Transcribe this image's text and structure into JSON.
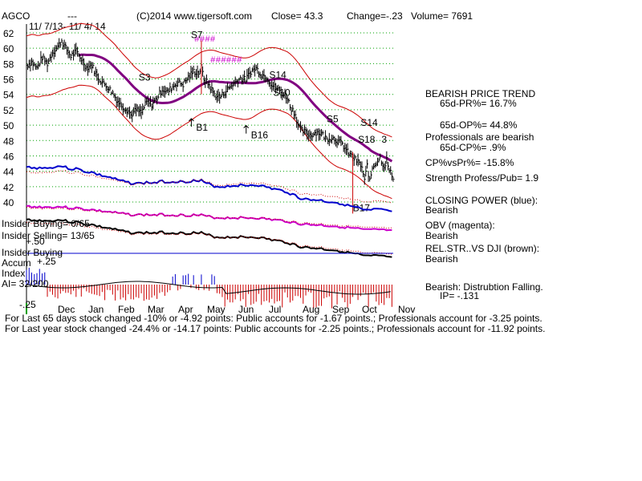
{
  "header": {
    "ticker": "AGCO",
    "dashes": "---",
    "copyright": "(C)2014 www.tigersoft.com",
    "close": "Close=  43.3",
    "change": "Change=-.23",
    "volume": "Volume= 7691",
    "date_range": "11/ 7/13- 11/ 4/ 14"
  },
  "chart_data": {
    "type": "line",
    "y_ticks": [
      "62",
      "60",
      "58",
      "56",
      "54",
      "52",
      "50",
      "48",
      "46",
      "44",
      "42",
      "40"
    ],
    "ylim": [
      40,
      62
    ],
    "x_months": [
      "Dec",
      "Jan",
      "Feb",
      "Mar",
      "Apr",
      "May",
      "Jun",
      "Jul",
      "Aug",
      "Sep",
      "Oct",
      "Nov"
    ],
    "price_path": [
      [
        0,
        57.8
      ],
      [
        4,
        58.2
      ],
      [
        8,
        57.4
      ],
      [
        12,
        58.8
      ],
      [
        16,
        58.0
      ],
      [
        20,
        59.5
      ],
      [
        24,
        60.2
      ],
      [
        27,
        61.0
      ],
      [
        30,
        60.0
      ],
      [
        34,
        59.0
      ],
      [
        38,
        59.6
      ],
      [
        42,
        58.6
      ],
      [
        46,
        57.5
      ],
      [
        50,
        57.8
      ],
      [
        54,
        56.4
      ],
      [
        58,
        55.6
      ],
      [
        62,
        55.0
      ],
      [
        66,
        54.2
      ],
      [
        70,
        53.1
      ],
      [
        74,
        52.4
      ],
      [
        78,
        51.9
      ],
      [
        80,
        51.3
      ],
      [
        84,
        52.0
      ],
      [
        88,
        51.6
      ],
      [
        92,
        53.0
      ],
      [
        96,
        52.7
      ],
      [
        100,
        53.5
      ],
      [
        104,
        54.7
      ],
      [
        108,
        54.3
      ],
      [
        112,
        55.0
      ],
      [
        116,
        55.6
      ],
      [
        120,
        55.3
      ],
      [
        124,
        56.2
      ],
      [
        128,
        57.0
      ],
      [
        132,
        56.8
      ],
      [
        134,
        57.5
      ],
      [
        136,
        56.0
      ],
      [
        140,
        55.2
      ],
      [
        144,
        54.0
      ],
      [
        148,
        53.6
      ],
      [
        152,
        54.3
      ],
      [
        156,
        55.0
      ],
      [
        160,
        55.6
      ],
      [
        164,
        56.1
      ],
      [
        168,
        55.9
      ],
      [
        172,
        57.0
      ],
      [
        176,
        57.4
      ],
      [
        180,
        56.6
      ],
      [
        184,
        56.3
      ],
      [
        188,
        55.2
      ],
      [
        192,
        54.8
      ],
      [
        196,
        54.1
      ],
      [
        200,
        53.6
      ],
      [
        202,
        52.4
      ],
      [
        204,
        52.0
      ],
      [
        206,
        51.4
      ],
      [
        208,
        50.1
      ],
      [
        210,
        49.4
      ],
      [
        214,
        49.0
      ],
      [
        218,
        48.7
      ],
      [
        222,
        49.1
      ],
      [
        226,
        48.9
      ],
      [
        230,
        48.2
      ],
      [
        234,
        48.4
      ],
      [
        238,
        48.0
      ],
      [
        242,
        47.5
      ],
      [
        246,
        46.5
      ],
      [
        250,
        45.8
      ],
      [
        254,
        45.2
      ],
      [
        257,
        44.5
      ],
      [
        259,
        42.7
      ],
      [
        261,
        44.8
      ],
      [
        263,
        42.6
      ],
      [
        265,
        44.5
      ],
      [
        268,
        45.2
      ],
      [
        271,
        45.8
      ],
      [
        274,
        44.6
      ],
      [
        276,
        45.5
      ],
      [
        278,
        44.0
      ],
      [
        281,
        43.3
      ]
    ],
    "x_max": 281,
    "signals": [
      {
        "label": "S7",
        "x": 126,
        "y": 61.3
      },
      {
        "label": "S3",
        "x": 86,
        "y": 55.8
      },
      {
        "label": "S14",
        "x": 186,
        "y": 56.1
      },
      {
        "label": "S10",
        "x": 189,
        "y": 53.8
      },
      {
        "label": "B1",
        "x": 130,
        "y": 49.3
      },
      {
        "label": "B16",
        "x": 172,
        "y": 48.3
      },
      {
        "label": "S5",
        "x": 230,
        "y": 50.4
      },
      {
        "label": "S14",
        "x": 256,
        "y": 49.9
      },
      {
        "label": "S18",
        "x": 254,
        "y": 47.7
      },
      {
        "label": "3",
        "x": 272,
        "y": 47.7
      },
      {
        "label": "B17",
        "x": 250,
        "y": 38.8
      }
    ],
    "lower_labels": {
      "insider_buying": "Insider Buying= 0/65",
      "insider_selling": "Insider Selling= 13/65",
      "plus50": "+.50",
      "insider_buying2": "Insider Buying",
      "accum": "Accum",
      "plus25": "+.25",
      "index": "Index",
      "ai": "AI= 32/200",
      "minus25": "-.25"
    }
  },
  "stats": {
    "trend_title": "BEARISH PRICE TREND",
    "pr": "65d-PR%= 16.7%",
    "op": "65d-OP%= 44.8%",
    "pros": "Professionals are bearish",
    "cp": "65d-CP%= .9%",
    "cpvspr": "CP%vsPr%= -15.8%",
    "strength": "Strength Profess/Pub= 1.9",
    "closing_power": "CLOSING POWER (blue):",
    "closing_power_val": "Bearish",
    "obv": "OBV (magenta):",
    "obv_val": "Bearish",
    "relstr": "REL.STR..VS DJI (brown):",
    "relstr_val": "Bearish",
    "dist": "Bearish: Distrubtion Falling.",
    "ip": "IP= -.131"
  },
  "footer": {
    "line1": "For Last 65 days stock changed -10% or -4.92 points:  Public accounts for -1.67 points.;  Professionals account for -3.25 points.",
    "line2": "For Last year stock changed -24.4% or -14.17 points:  Public accounts for -2.25 points.;  Professionals account for -11.92 points."
  },
  "colors": {
    "price": "#000000",
    "band": "#cc0000",
    "ma": "#800080",
    "closing_power": "#0000cc",
    "obv": "#cc00cc",
    "relstr": "#000000",
    "accum_neg": "#cc0000",
    "accum_pos": "#0000cc",
    "grid": "#00a000"
  }
}
